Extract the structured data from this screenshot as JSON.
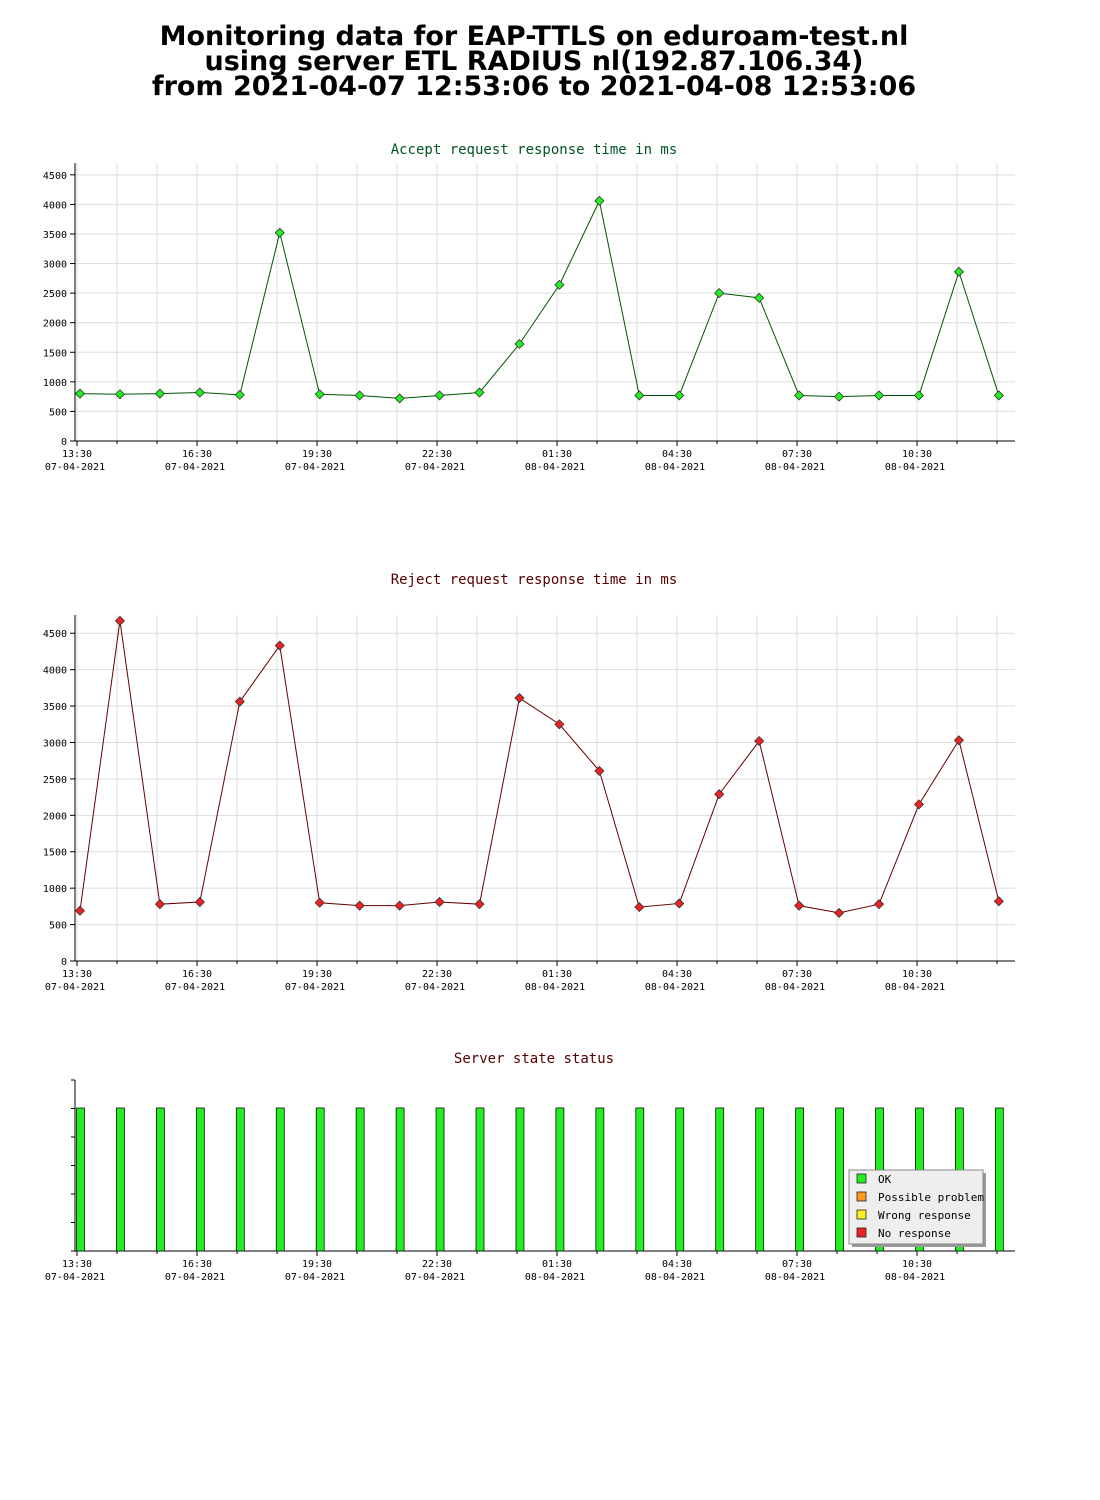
{
  "title": {
    "line1": "Monitoring data for EAP-TTLS on eduroam-test.nl",
    "line2": "using server ETL RADIUS nl(192.87.106.34)",
    "line3": "from 2021-04-07 12:53:06 to 2021-04-08 12:53:06"
  },
  "x_tick_labels": [
    [
      "13:30",
      "07-04-2021"
    ],
    [
      "16:30",
      "07-04-2021"
    ],
    [
      "19:30",
      "07-04-2021"
    ],
    [
      "22:30",
      "07-04-2021"
    ],
    [
      "01:30",
      "08-04-2021"
    ],
    [
      "04:30",
      "08-04-2021"
    ],
    [
      "07:30",
      "08-04-2021"
    ],
    [
      "10:30",
      "08-04-2021"
    ]
  ],
  "colors": {
    "ok": "#22ee22",
    "possible_problem": "#ff9a1a",
    "wrong_response": "#ffee22",
    "no_response": "#ee2222",
    "accept_title": "#005522",
    "reject_title": "#550000",
    "accept_line": "#005500",
    "reject_line": "#660000",
    "grid": "#dddddd"
  },
  "chart_data": [
    {
      "type": "line",
      "title": "Accept request response time in ms",
      "x": [
        "13:15",
        "14:15",
        "15:15",
        "16:15",
        "17:15",
        "18:15",
        "19:15",
        "20:15",
        "21:15",
        "22:15",
        "23:15",
        "00:15",
        "01:15",
        "02:15",
        "03:15",
        "04:15",
        "05:15",
        "06:15",
        "07:15",
        "08:15",
        "09:15",
        "10:15",
        "11:15",
        "12:15"
      ],
      "values": [
        800,
        790,
        800,
        820,
        780,
        3520,
        790,
        770,
        720,
        770,
        820,
        1640,
        2640,
        4060,
        770,
        770,
        2500,
        2420,
        770,
        750,
        770,
        770,
        2860,
        770
      ],
      "ylim": [
        0,
        4700
      ],
      "yticks": [
        0,
        500,
        1000,
        1500,
        2000,
        2500,
        3000,
        3500,
        4000,
        4500
      ],
      "grid": true
    },
    {
      "type": "line",
      "title": "Reject request response time in ms",
      "x": [
        "13:15",
        "14:15",
        "15:15",
        "16:15",
        "17:15",
        "18:15",
        "19:15",
        "20:15",
        "21:15",
        "22:15",
        "23:15",
        "00:15",
        "01:15",
        "02:15",
        "03:15",
        "04:15",
        "05:15",
        "06:15",
        "07:15",
        "08:15",
        "09:15",
        "10:15",
        "11:15",
        "12:15"
      ],
      "values": [
        690,
        4670,
        780,
        810,
        3560,
        4330,
        800,
        760,
        760,
        810,
        780,
        3610,
        3250,
        2610,
        740,
        790,
        2290,
        3020,
        760,
        660,
        780,
        2150,
        3030,
        820
      ],
      "ylim": [
        0,
        4750
      ],
      "yticks": [
        0,
        500,
        1000,
        1500,
        2000,
        2500,
        3000,
        3500,
        4000,
        4500
      ],
      "grid": true
    },
    {
      "type": "bar",
      "title": "Server state status",
      "categories": [
        "13:15",
        "14:15",
        "15:15",
        "16:15",
        "17:15",
        "18:15",
        "19:15",
        "20:15",
        "21:15",
        "22:15",
        "23:15",
        "00:15",
        "01:15",
        "02:15",
        "03:15",
        "04:15",
        "05:15",
        "06:15",
        "07:15",
        "08:15",
        "09:15",
        "10:15",
        "11:15",
        "12:15"
      ],
      "values": [
        "OK",
        "OK",
        "OK",
        "OK",
        "OK",
        "OK",
        "OK",
        "OK",
        "OK",
        "OK",
        "OK",
        "OK",
        "OK",
        "OK",
        "OK",
        "OK",
        "OK",
        "OK",
        "OK",
        "OK",
        "OK",
        "OK",
        "OK",
        "OK"
      ],
      "legend": [
        "OK",
        "Possible problem",
        "Wrong response",
        "No response"
      ],
      "legend_position": "bottom-right",
      "grid": false
    }
  ]
}
